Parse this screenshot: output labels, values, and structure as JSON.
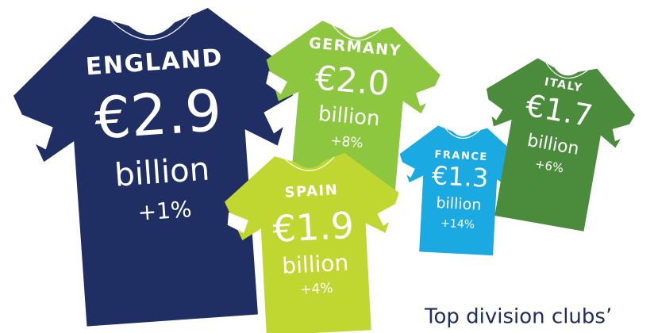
{
  "shirts": [
    {
      "country": "ENGLAND",
      "amount": "€2.9",
      "unit": "billion",
      "change": "+1%",
      "color": "#1f2e63"
    },
    {
      "country": "GERMANY",
      "amount": "€2.0",
      "unit": "billion",
      "change": "+8%",
      "color": "#8dc63f"
    },
    {
      "country": "SPAIN",
      "amount": "€1.9",
      "unit": "billion",
      "change": "+4%",
      "color": "#bfd730"
    },
    {
      "country": "FRANCE",
      "amount": "€1.3",
      "unit": "billion",
      "change": "+14%",
      "color": "#1ba9e1"
    },
    {
      "country": "ITALY",
      "amount": "€1.7",
      "unit": "billion",
      "change": "+6%",
      "color": "#4a8c3c"
    }
  ],
  "caption": "Top division clubs’"
}
